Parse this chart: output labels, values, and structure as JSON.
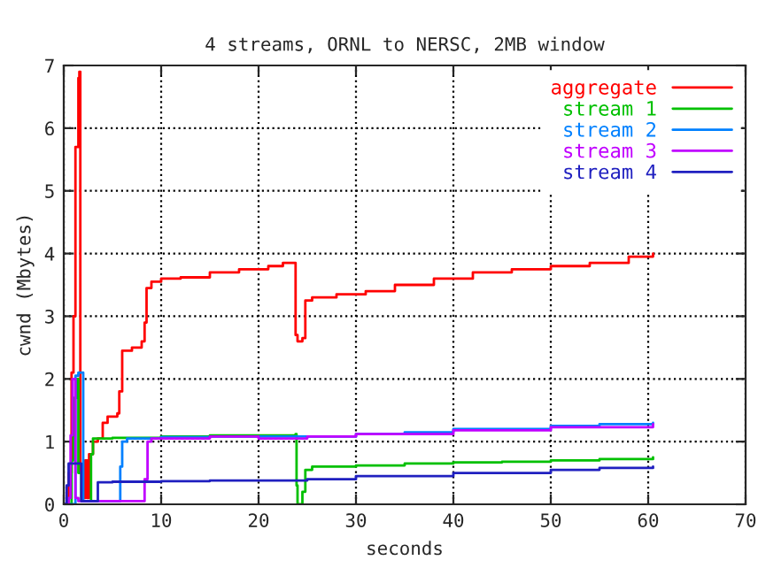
{
  "chart_data": {
    "type": "step",
    "title": "4 streams, ORNL to NERSC, 2MB window",
    "xlabel": "seconds",
    "ylabel": "cwnd (Mbytes)",
    "xlim": [
      0,
      70
    ],
    "xticks": [
      0,
      10,
      20,
      30,
      40,
      50,
      60,
      70
    ],
    "ylim": [
      0,
      7
    ],
    "yticks": [
      0,
      1,
      2,
      3,
      4,
      5,
      6,
      7
    ],
    "grid": true,
    "legend": "top right",
    "series": [
      {
        "name": "aggregate",
        "color": "#ff0000",
        "x": [
          0,
          0.5,
          0.8,
          1,
          1.2,
          1.5,
          1.6,
          1.7,
          2.0,
          2.2,
          2.4,
          2.6,
          3,
          3.5,
          4,
          4.5,
          5.5,
          5.7,
          6,
          7,
          8,
          8.3,
          8.5,
          9,
          10,
          12,
          15,
          18,
          21,
          22.5,
          23.8,
          24,
          24.5,
          24.8,
          25.5,
          28,
          31,
          34,
          38,
          42,
          46,
          50,
          54,
          58,
          60.5
        ],
        "values": [
          0,
          0.5,
          2.1,
          3.0,
          5.7,
          6.8,
          6.9,
          0.5,
          0.1,
          0.7,
          0.1,
          0.8,
          1.0,
          1.05,
          1.3,
          1.4,
          1.45,
          1.8,
          2.45,
          2.5,
          2.6,
          2.9,
          3.45,
          3.55,
          3.6,
          3.62,
          3.7,
          3.75,
          3.8,
          3.85,
          2.7,
          2.6,
          2.65,
          3.25,
          3.3,
          3.35,
          3.4,
          3.5,
          3.6,
          3.7,
          3.75,
          3.8,
          3.85,
          3.95,
          4.0
        ]
      },
      {
        "name": "stream 1",
        "color": "#00c000",
        "x": [
          0,
          0.8,
          1,
          1.3,
          1.5,
          1.8,
          2.5,
          2.8,
          3,
          5,
          10,
          15,
          23.8,
          23.9,
          24,
          24.5,
          24.8,
          25.5,
          30,
          35,
          40,
          45,
          50,
          55,
          60.5
        ],
        "values": [
          0,
          0.7,
          1.7,
          2.0,
          0.5,
          0.05,
          0.05,
          0.8,
          1.05,
          1.06,
          1.08,
          1.1,
          1.12,
          0.3,
          0,
          0.2,
          0.55,
          0.6,
          0.62,
          0.65,
          0.67,
          0.68,
          0.7,
          0.72,
          0.75
        ]
      },
      {
        "name": "stream 2",
        "color": "#0080ff",
        "x": [
          0,
          1.2,
          1.5,
          2,
          5.5,
          5.8,
          6,
          6.5,
          10,
          15,
          25,
          30,
          35,
          40,
          50,
          55,
          60.5
        ],
        "values": [
          0,
          2.05,
          2.1,
          0.05,
          0.05,
          0.6,
          1.0,
          1.05,
          1.07,
          1.08,
          1.08,
          1.12,
          1.15,
          1.2,
          1.25,
          1.28,
          1.3
        ]
      },
      {
        "name": "stream 3",
        "color": "#c000ff",
        "x": [
          0,
          0.5,
          0.7,
          0.9,
          1.2,
          1.5,
          8,
          8.3,
          8.6,
          9,
          15,
          20,
          25,
          30,
          40,
          50,
          60.5
        ],
        "values": [
          0,
          0.1,
          1.1,
          2.0,
          0.1,
          0.05,
          0.05,
          0.4,
          1.0,
          1.05,
          1.08,
          1.05,
          1.08,
          1.12,
          1.18,
          1.23,
          1.28
        ]
      },
      {
        "name": "stream 4",
        "color": "#2020c0",
        "x": [
          0,
          0.3,
          0.5,
          1.6,
          1.8,
          3,
          3.5,
          5,
          10,
          15,
          20,
          25,
          30,
          40,
          50,
          55,
          60.5
        ],
        "values": [
          0,
          0.3,
          0.65,
          0.65,
          0.05,
          0.05,
          0.35,
          0.36,
          0.37,
          0.38,
          0.38,
          0.4,
          0.45,
          0.5,
          0.55,
          0.58,
          0.6
        ]
      }
    ]
  }
}
